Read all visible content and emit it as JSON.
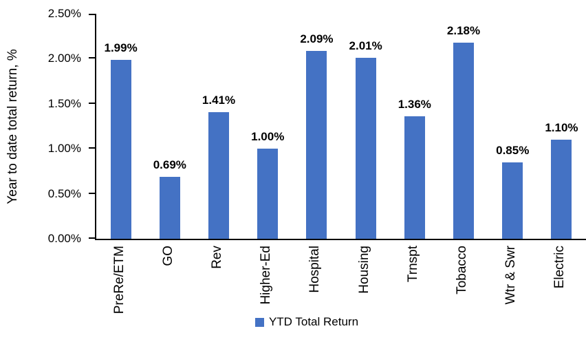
{
  "chart_data": {
    "type": "bar",
    "title": "",
    "categories": [
      "PreRe/ETM",
      "GO",
      "Rev",
      "Higher-Ed",
      "Hospital",
      "Housing",
      "Trnspt",
      "Tobacco",
      "Wtr & Swr",
      "Electric"
    ],
    "values": [
      1.99,
      0.69,
      1.41,
      1.0,
      2.09,
      2.01,
      1.36,
      2.18,
      0.85,
      1.1
    ],
    "bar_labels": [
      "1.99%",
      "0.69%",
      "1.41%",
      "1.00%",
      "2.09%",
      "2.01%",
      "1.36%",
      "2.18%",
      "0.85%",
      "1.10%"
    ],
    "xlabel": "",
    "ylabel": "Year to date total return, %",
    "ylim": [
      0,
      2.5
    ],
    "y_ticks": [
      "0.00%",
      "0.50%",
      "1.00%",
      "1.50%",
      "2.00%",
      "2.50%"
    ],
    "grid": false,
    "legend": {
      "position": "bottom",
      "entries": [
        {
          "label": "YTD Total Return",
          "color": "#4472C4"
        }
      ]
    },
    "bar_color": "#4472C4",
    "axis_color": "#000000",
    "background_color": "#FFFFFF"
  }
}
